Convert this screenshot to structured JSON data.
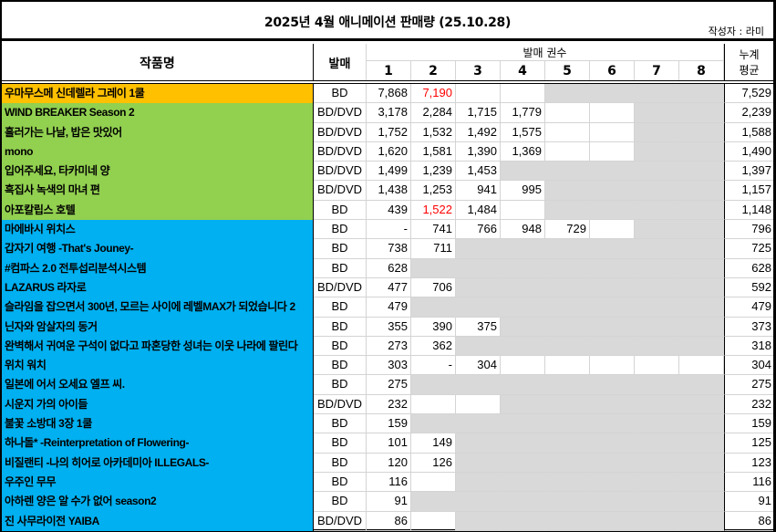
{
  "header": {
    "title": "2025년 4월 애니메이션 판매량 (25.10.28)",
    "author": "작성자 : 라미",
    "col_name": "작품명",
    "col_type": "발매",
    "col_volumes": "발매 권수",
    "volume_numbers": [
      "1",
      "2",
      "3",
      "4",
      "5",
      "6",
      "7",
      "8"
    ],
    "col_avg_line1": "누계",
    "col_avg_line2": "평균"
  },
  "colors": {
    "orange": "#FFC000",
    "green": "#92D050",
    "blue": "#00B0F0",
    "gray": "#D9D9D9",
    "highlight_red": "#FF0000"
  },
  "rows": [
    {
      "name": "우마무스메 신데렐라 그레이 1쿨",
      "type": "BD",
      "group": "orange",
      "vols": [
        "7,868",
        "7,190",
        "",
        ""
      ],
      "gray_from": 5,
      "avg": "7,529",
      "red": [
        2
      ]
    },
    {
      "name": "WIND BREAKER Season 2",
      "type": "BD/DVD",
      "group": "green",
      "vols": [
        "3,178",
        "2,284",
        "1,715",
        "1,779",
        "",
        ""
      ],
      "gray_from": 7,
      "avg": "2,239",
      "red": []
    },
    {
      "name": "흘러가는 나날, 밥은 맛있어",
      "type": "BD/DVD",
      "group": "green",
      "vols": [
        "1,752",
        "1,532",
        "1,492",
        "1,575",
        "",
        ""
      ],
      "gray_from": 7,
      "avg": "1,588",
      "red": []
    },
    {
      "name": "mono",
      "type": "BD/DVD",
      "group": "green",
      "vols": [
        "1,620",
        "1,581",
        "1,390",
        "1,369",
        "",
        ""
      ],
      "gray_from": 7,
      "avg": "1,490",
      "red": []
    },
    {
      "name": "입어주세요, 타카미네 양",
      "type": "BD/DVD",
      "group": "green",
      "vols": [
        "1,499",
        "1,239",
        "1,453"
      ],
      "gray_from": 4,
      "avg": "1,397",
      "red": []
    },
    {
      "name": "흑집사 녹색의 마녀 편",
      "type": "BD/DVD",
      "group": "green",
      "vols": [
        "1,438",
        "1,253",
        "941",
        "995"
      ],
      "gray_from": 5,
      "avg": "1,157",
      "red": []
    },
    {
      "name": "아포칼립스 호텔",
      "type": "BD",
      "group": "green",
      "vols": [
        "439",
        "1,522",
        "1,484",
        ""
      ],
      "gray_from": 5,
      "avg": "1,148",
      "red": [
        2
      ]
    },
    {
      "name": "마에바시 위치스",
      "type": "BD",
      "group": "blue",
      "vols": [
        "-",
        "741",
        "766",
        "948",
        "729",
        ""
      ],
      "gray_from": 7,
      "avg": "796",
      "red": []
    },
    {
      "name": "갑자기 여행 -That's Jouney-",
      "type": "BD",
      "group": "blue",
      "vols": [
        "738",
        "711"
      ],
      "gray_from": 3,
      "avg": "725",
      "red": []
    },
    {
      "name": "#컴파스 2.0 전투섭리분석시스템",
      "type": "BD",
      "group": "blue",
      "vols": [
        "628"
      ],
      "gray_from": 2,
      "avg": "628",
      "red": []
    },
    {
      "name": "LAZARUS 라자로",
      "type": "BD/DVD",
      "group": "blue",
      "vols": [
        "477",
        "706"
      ],
      "gray_from": 3,
      "avg": "592",
      "red": []
    },
    {
      "name": "슬라임을 잡으면서 300년, 모르는 사이에 레벨MAX가 되었습니다 2",
      "type": "BD",
      "group": "blue",
      "vols": [
        "479"
      ],
      "gray_from": 2,
      "avg": "479",
      "red": []
    },
    {
      "name": "닌자와 암살자의 동거",
      "type": "BD",
      "group": "blue",
      "vols": [
        "355",
        "390",
        "375"
      ],
      "gray_from": 4,
      "avg": "373",
      "red": []
    },
    {
      "name": "완벽해서 귀여운 구석이 없다고 파혼당한 성녀는 이웃 나라에 팔린다",
      "type": "BD",
      "group": "blue",
      "vols": [
        "273",
        "362"
      ],
      "gray_from": 3,
      "avg": "318",
      "red": []
    },
    {
      "name": "위치 워치",
      "type": "BD",
      "group": "blue",
      "vols": [
        "303",
        "-",
        "304",
        "",
        "",
        "",
        "",
        ""
      ],
      "gray_from": 9,
      "avg": "304",
      "red": []
    },
    {
      "name": "일본에 어서 오세요 엘프 씨.",
      "type": "BD",
      "group": "blue",
      "vols": [
        "275"
      ],
      "gray_from": 2,
      "avg": "275",
      "red": []
    },
    {
      "name": "시운지 가의 아이들",
      "type": "BD/DVD",
      "group": "blue",
      "vols": [
        "232",
        "",
        ""
      ],
      "gray_from": 4,
      "avg": "232",
      "red": []
    },
    {
      "name": "불꽃 소방대 3장 1쿨",
      "type": "BD",
      "group": "blue",
      "vols": [
        "159"
      ],
      "gray_from": 2,
      "avg": "159",
      "red": []
    },
    {
      "name": "하나돌* -Reinterpretation of Flowering-",
      "type": "BD",
      "group": "blue",
      "vols": [
        "101",
        "149"
      ],
      "gray_from": 3,
      "avg": "125",
      "red": []
    },
    {
      "name": "비질랜티 -나의 히어로 아카데미아 ILLEGALS-",
      "type": "BD",
      "group": "blue",
      "vols": [
        "120",
        "126"
      ],
      "gray_from": 3,
      "avg": "123",
      "red": []
    },
    {
      "name": "우주인 무무",
      "type": "BD",
      "group": "blue",
      "vols": [
        "116",
        ""
      ],
      "gray_from": 3,
      "avg": "116",
      "red": []
    },
    {
      "name": "아하렌 양은 알 수가 없어 season2",
      "type": "BD",
      "group": "blue",
      "vols": [
        "91"
      ],
      "gray_from": 2,
      "avg": "91",
      "red": []
    },
    {
      "name": "진 사무라이전 YAIBA",
      "type": "BD/DVD",
      "group": "blue",
      "vols": [
        "86",
        ""
      ],
      "gray_from": 3,
      "avg": "86",
      "red": []
    }
  ]
}
